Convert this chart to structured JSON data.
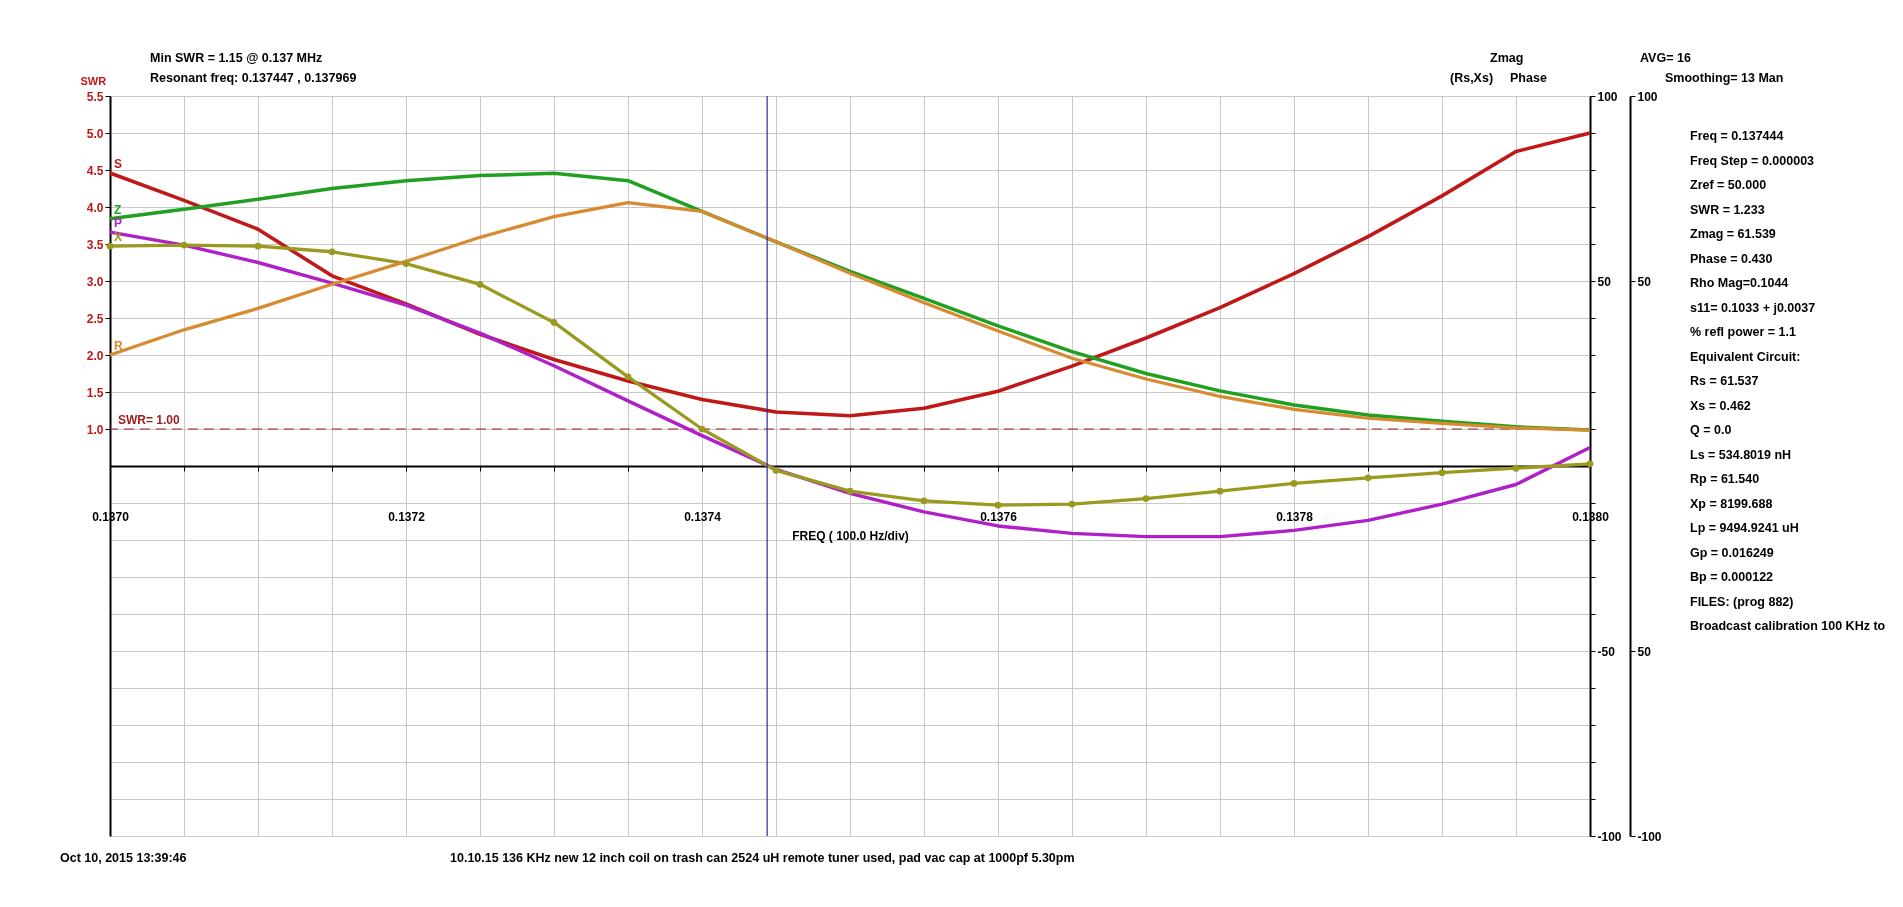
{
  "chart_data": {
    "type": "line",
    "xlabel": "FREQ ( 100.0 Hz/div)",
    "ylabel": "SWR",
    "x": [
      0.137,
      0.13705,
      0.1371,
      0.13715,
      0.1372,
      0.13725,
      0.1373,
      0.13735,
      0.1374,
      0.13745,
      0.1375,
      0.13755,
      0.1376,
      0.13765,
      0.1377,
      0.13775,
      0.1378,
      0.13785,
      0.1379,
      0.13795,
      0.138
    ],
    "series": [
      {
        "name": "S",
        "color": "#c01818",
        "axis": "y",
        "values": [
          4.46,
          4.09,
          3.7,
          3.07,
          2.69,
          2.28,
          1.94,
          1.65,
          1.4,
          1.23,
          1.18,
          1.28,
          1.51,
          1.85,
          2.23,
          2.64,
          3.1,
          3.6,
          4.15,
          4.75,
          5.0
        ]
      },
      {
        "name": "Z",
        "color": "#20a020",
        "axis": "y2",
        "values": [
          66.8,
          69.4,
          72.1,
          75.0,
          77.1,
          78.5,
          79.1,
          77.1,
          68.8,
          60.6,
          52.6,
          45.3,
          37.9,
          30.9,
          25.0,
          20.3,
          16.5,
          13.8,
          12.1,
          10.6,
          9.7
        ]
      },
      {
        "name": "P",
        "color": "#b020c8",
        "axis": "y2",
        "values": [
          63.2,
          59.7,
          55.0,
          49.4,
          43.5,
          35.9,
          27.1,
          17.6,
          8.2,
          -0.9,
          -7.4,
          -12.4,
          -16.2,
          -18.2,
          -19.1,
          -19.1,
          -17.4,
          -14.7,
          -10.3,
          -5.0,
          5.0
        ]
      },
      {
        "name": "X",
        "color": "#9a9a20",
        "axis": "y2",
        "marker": "circle",
        "values": [
          59.4,
          59.7,
          59.4,
          57.9,
          54.7,
          49.1,
          38.8,
          24.1,
          10.0,
          -1.2,
          -6.8,
          -9.4,
          -10.6,
          -10.3,
          -8.8,
          -6.8,
          -4.7,
          -3.2,
          -1.8,
          -0.6,
          0.6
        ]
      },
      {
        "name": "R",
        "color": "#d88a30",
        "axis": "y2",
        "values": [
          30.0,
          36.8,
          42.6,
          49.1,
          55.3,
          61.8,
          67.4,
          71.2,
          68.8,
          60.6,
          52.1,
          44.1,
          36.5,
          29.1,
          23.5,
          18.8,
          15.3,
          12.9,
          11.5,
          10.3,
          9.7
        ]
      }
    ],
    "xlim": [
      0.137,
      0.138
    ],
    "xticks": [
      {
        "value": 0.137,
        "label": "0.1370"
      },
      {
        "value": 0.13705,
        "label": null
      },
      {
        "value": 0.1371,
        "label": null
      },
      {
        "value": 0.13715,
        "label": null
      },
      {
        "value": 0.1372,
        "label": "0.1372"
      },
      {
        "value": 0.13725,
        "label": null
      },
      {
        "value": 0.1373,
        "label": null
      },
      {
        "value": 0.13735,
        "label": null
      },
      {
        "value": 0.1374,
        "label": "0.1374"
      },
      {
        "value": 0.13745,
        "label": null
      },
      {
        "value": 0.1375,
        "label": null
      },
      {
        "value": 0.13755,
        "label": null
      },
      {
        "value": 0.1376,
        "label": "0.1376"
      },
      {
        "value": 0.13765,
        "label": null
      },
      {
        "value": 0.1377,
        "label": null
      },
      {
        "value": 0.13775,
        "label": null
      },
      {
        "value": 0.1378,
        "label": "0.1378"
      },
      {
        "value": 0.13785,
        "label": null
      },
      {
        "value": 0.1379,
        "label": null
      },
      {
        "value": 0.13795,
        "label": null
      },
      {
        "value": 0.138,
        "label": "0.1380"
      }
    ],
    "ylim": [
      -4.5,
      5.5
    ],
    "yticks": [
      {
        "value": 1,
        "label": "1.0"
      },
      {
        "value": 1.5,
        "label": "1.5"
      },
      {
        "value": 2,
        "label": "2.0"
      },
      {
        "value": 2.5,
        "label": "2.5"
      },
      {
        "value": 3,
        "label": "3.0"
      },
      {
        "value": 3.5,
        "label": "3.5"
      },
      {
        "value": 4,
        "label": "4.0"
      },
      {
        "value": 4.5,
        "label": "4.5"
      },
      {
        "value": 5,
        "label": "5.0"
      },
      {
        "value": 5.5,
        "label": "5.5"
      }
    ],
    "y2lim": [
      -100,
      100
    ],
    "y2ticks": [
      100,
      {
        "value": 90,
        "label": null
      },
      {
        "value": 80,
        "label": null
      },
      {
        "value": 70,
        "label": null
      },
      {
        "value": 60,
        "label": null
      },
      50,
      {
        "value": 40,
        "label": null
      },
      {
        "value": 30,
        "label": null
      },
      {
        "value": 20,
        "label": null
      },
      {
        "value": 10,
        "label": null
      },
      {
        "value": -10,
        "label": null
      },
      {
        "value": -20,
        "label": null
      },
      {
        "value": -30,
        "label": null
      },
      {
        "value": -40,
        "label": null
      },
      -50,
      {
        "value": -60,
        "label": null
      },
      {
        "value": -70,
        "label": null
      },
      {
        "value": -80,
        "label": null
      },
      {
        "value": -90,
        "label": null
      },
      -100
    ],
    "y3lim": [
      -100,
      100
    ],
    "y3ticks": [
      100,
      50,
      {
        "value": -50,
        "label": "50"
      },
      -100
    ],
    "grid": true,
    "ref_lines": [
      {
        "axis": "y",
        "value": 1,
        "label": "SWR= 1.00",
        "color": "#a02020",
        "line_style": "dashed"
      },
      {
        "axis": "x",
        "value": 0.137444,
        "color": "#2828a0"
      }
    ],
    "annotations": [
      "Min SWR =   1.15 @  0.137 MHz",
      "Resonant freq:  0.137447 , 0.137969",
      "Zmag",
      "(Rs,Xs)",
      "Phase",
      "AVG=  16",
      "Smoothing= 13 Man",
      "Freq = 0.137444",
      "Freq Step = 0.000003",
      "Zref =   50.000",
      "SWR  =    1.233",
      "Zmag =   61.539",
      "Phase =     0.430",
      "Rho Mag=0.1044",
      "s11= 0.1033 + j0.0037",
      "% refl power =  1.1",
      "Equivalent Circuit:",
      "Rs =   61.537",
      "Xs =     0.462",
      "Q =  0.0",
      "Ls =  534.8019  nH",
      "Rp =   61.540",
      "Xp = 8199.688",
      "Lp = 9494.9241  uH",
      "Gp =  0.016249",
      "Bp =  0.000122",
      "FILES:  (prog 882)",
      "Broadcast calibration 100 KHz to",
      "Oct 10, 2015  13:39:46",
      "10.10.15 136 KHz new 12 inch coil on trash can 2524 uH remote tuner used, pad vac cap at 1000pf 5.30pm"
    ]
  }
}
